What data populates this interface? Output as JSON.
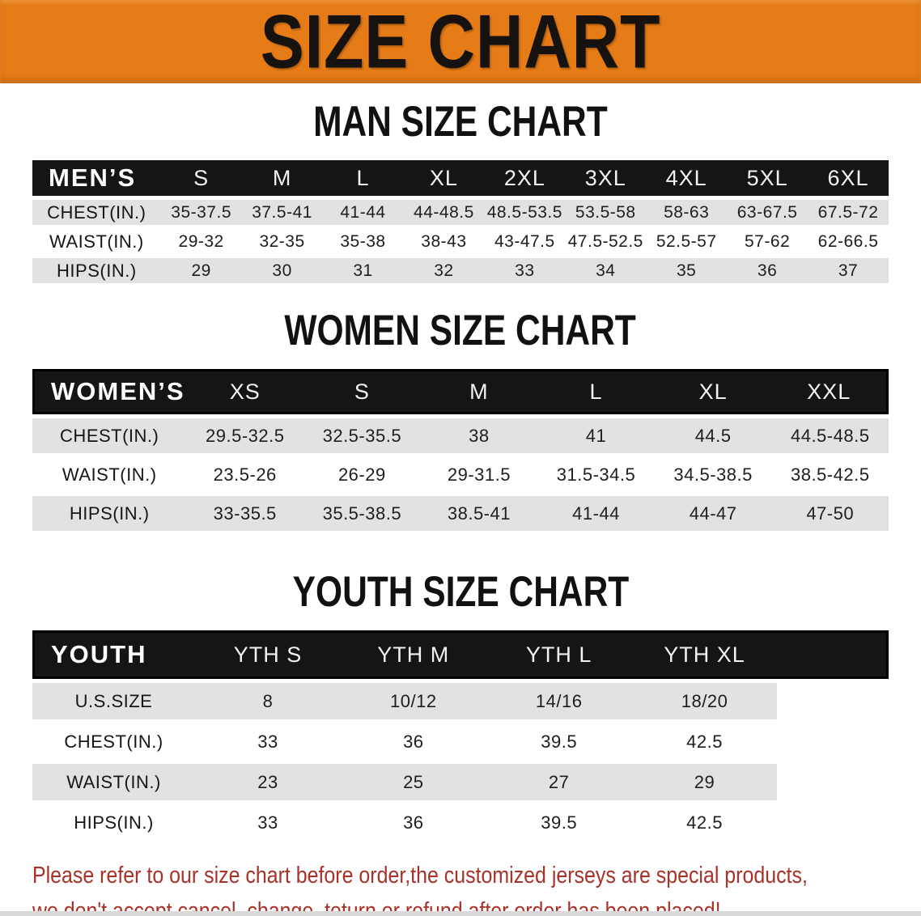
{
  "banner": {
    "title": "SIZE CHART",
    "bg_color": "#E67C17",
    "text_color": "#161210"
  },
  "sections": [
    {
      "heading": "MAN SIZE CHART",
      "table": {
        "header_label": "MEN’S",
        "columns": [
          "S",
          "M",
          "L",
          "XL",
          "2XL",
          "3XL",
          "4XL",
          "5XL",
          "6XL"
        ],
        "rows": [
          {
            "label": "CHEST(IN.)",
            "values": [
              "35-37.5",
              "37.5-41",
              "41-44",
              "44-48.5",
              "48.5-53.5",
              "53.5-58",
              "58-63",
              "63-67.5",
              "67.5-72"
            ]
          },
          {
            "label": "WAIST(IN.)",
            "values": [
              "29-32",
              "32-35",
              "35-38",
              "38-43",
              "43-47.5",
              "47.5-52.5",
              "52.5-57",
              "57-62",
              "62-66.5"
            ]
          },
          {
            "label": "HIPS(IN.)",
            "values": [
              "29",
              "30",
              "31",
              "32",
              "33",
              "34",
              "35",
              "36",
              "37"
            ]
          }
        ]
      }
    },
    {
      "heading": "WOMEN SIZE CHART",
      "table": {
        "header_label": "WOMEN’S",
        "columns": [
          "XS",
          "S",
          "M",
          "L",
          "XL",
          "XXL"
        ],
        "rows": [
          {
            "label": "CHEST(IN.)",
            "values": [
              "29.5-32.5",
              "32.5-35.5",
              "38",
              "41",
              "44.5",
              "44.5-48.5"
            ]
          },
          {
            "label": "WAIST(IN.)",
            "values": [
              "23.5-26",
              "26-29",
              "29-31.5",
              "31.5-34.5",
              "34.5-38.5",
              "38.5-42.5"
            ]
          },
          {
            "label": "HIPS(IN.)",
            "values": [
              "33-35.5",
              "35.5-38.5",
              "38.5-41",
              "41-44",
              "44-47",
              "47-50"
            ]
          }
        ]
      }
    },
    {
      "heading": "YOUTH SIZE CHART",
      "table": {
        "header_label": "YOUTH",
        "columns": [
          "YTH S",
          "YTH M",
          "YTH L",
          "YTH XL"
        ],
        "spacer_after": true,
        "rows": [
          {
            "label": "U.S.SIZE",
            "values": [
              "8",
              "10/12",
              "14/16",
              "18/20"
            ]
          },
          {
            "label": "CHEST(IN.)",
            "values": [
              "33",
              "36",
              "39.5",
              "42.5"
            ]
          },
          {
            "label": "WAIST(IN.)",
            "values": [
              "23",
              "25",
              "27",
              "29"
            ]
          },
          {
            "label": "HIPS(IN.)",
            "values": [
              "33",
              "36",
              "39.5",
              "42.5"
            ]
          }
        ]
      }
    }
  ],
  "footer": {
    "line1": "Please refer to our size chart before order,the customized jerseys are special products,",
    "line2": "we don't accept cancel, change, teturn or refund after order has been placed!",
    "text_color": "#A93128"
  },
  "colors": {
    "banner_orange": "#E67C17",
    "table_header_black": "#151515",
    "row_gray": "#E2E2E0",
    "notice_red": "#A93128"
  }
}
